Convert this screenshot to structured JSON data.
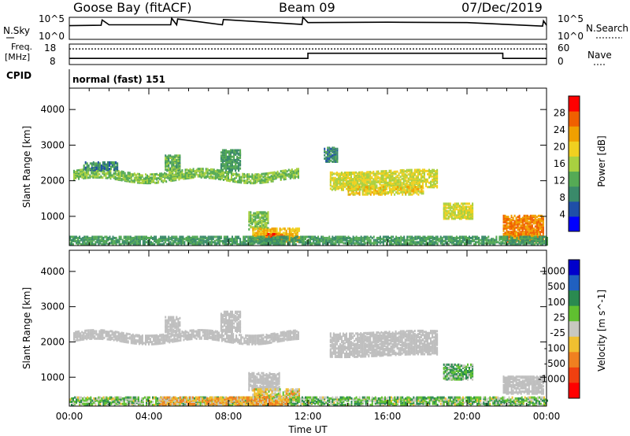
{
  "header": {
    "station": "Goose Bay (fitACF)",
    "beam": "Beam 09",
    "date": "07/Dec/2019"
  },
  "params": {
    "nsky_label": "N.Sky",
    "nsearch_label": "N.Search",
    "freq_label_1": "Freq.",
    "freq_label_2": "[MHz]",
    "nave_label": "Nave",
    "cpid_label": "CPID",
    "cpid_text": "normal (fast) 151",
    "noise_ticks": [
      "10^5",
      "10^0"
    ],
    "noise_ticks_right": [
      "10^5",
      "10^0"
    ],
    "freq_ticks": [
      "18",
      "8"
    ],
    "nave_ticks": [
      "60",
      "0"
    ]
  },
  "colors": {
    "power_scale": [
      "#0000ff",
      "#1f4fa8",
      "#3a8a6a",
      "#55aa55",
      "#a8d040",
      "#f0d020",
      "#f0a000",
      "#f06000",
      "#ff0000"
    ],
    "velocity_scale": [
      "#0000cc",
      "#2060c0",
      "#2a8a50",
      "#60c030",
      "#c8c8c0",
      "#f0c030",
      "#f08020",
      "#f04010",
      "#ff0000"
    ],
    "ground_scatter": "#bebebe"
  },
  "chart_data": [
    {
      "type": "line",
      "title": "",
      "ylabel": "N.Sky",
      "description": "sky noise (log scale), night at ~10^5 level with spikes",
      "x_hours": [
        0,
        1.6,
        1.65,
        2,
        5.1,
        5.15,
        5.4,
        5.45,
        7.7,
        7.75,
        11.7,
        11.75,
        12,
        16,
        20,
        23.8,
        23.85,
        24
      ],
      "values": [
        3.1,
        3.2,
        4.4,
        3.3,
        3.3,
        4.8,
        3.3,
        4.6,
        3.3,
        4.5,
        3.4,
        5.0,
        3.8,
        3.9,
        3.8,
        3.0,
        4.2,
        3.2
      ],
      "ylim": [
        0,
        5
      ]
    },
    {
      "type": "line",
      "ylabel": "Freq. [MHz]",
      "description": "transmit frequency and Nave",
      "x_hours": [
        0,
        12,
        12,
        21.8,
        21.8,
        24
      ],
      "freq_mhz": [
        11.0,
        11.0,
        13.5,
        13.5,
        11.0,
        11.0
      ],
      "nave": [
        46,
        46,
        46,
        46,
        46,
        46
      ],
      "freq_ylim": [
        8,
        18
      ],
      "nave_ylim": [
        0,
        60
      ]
    },
    {
      "type": "heatmap",
      "title": "",
      "xlabel": "",
      "ylabel": "Slant Range [km]",
      "colorbar_label": "Power [dB]",
      "colorbar_ticks": [
        4,
        8,
        12,
        16,
        20,
        24,
        28
      ],
      "zlim": [
        0,
        32
      ],
      "x_hours_range": [
        0,
        24
      ],
      "ylim": [
        180,
        4600
      ],
      "yticks": [
        1000,
        2000,
        3000,
        4000
      ],
      "regions": [
        {
          "t0": 0.2,
          "t1": 11.5,
          "r0": 1980,
          "r1": 2250,
          "level": 14,
          "wave": 1.2,
          "wamp": 80
        },
        {
          "t0": 0.7,
          "t1": 2.4,
          "r0": 2270,
          "r1": 2500,
          "level": 8,
          "wave": 0,
          "wamp": 0
        },
        {
          "t0": 4.8,
          "t1": 5.6,
          "r0": 2250,
          "r1": 2700,
          "level": 12,
          "wave": 0,
          "wamp": 0
        },
        {
          "t0": 7.6,
          "t1": 8.6,
          "r0": 2250,
          "r1": 2850,
          "level": 10,
          "wave": 0,
          "wamp": 0
        },
        {
          "t0": 9.0,
          "t1": 10.0,
          "r0": 600,
          "r1": 1100,
          "level": 14,
          "wave": 0,
          "wamp": 0
        },
        {
          "t0": 9.2,
          "t1": 11.6,
          "r0": 260,
          "r1": 650,
          "level": 22,
          "wave": 0,
          "wamp": 0
        },
        {
          "t0": 9.8,
          "t1": 10.8,
          "r0": 260,
          "r1": 480,
          "level": 28,
          "wave": 0,
          "wamp": 0
        },
        {
          "t0": 13.1,
          "t1": 18.5,
          "r0": 1750,
          "r1": 2250,
          "level": 18,
          "wave": 0.8,
          "wamp": 40
        },
        {
          "t0": 14.0,
          "t1": 17.8,
          "r0": 1580,
          "r1": 1820,
          "level": 20,
          "wave": 0,
          "wamp": 0
        },
        {
          "t0": 12.8,
          "t1": 13.5,
          "r0": 2500,
          "r1": 2900,
          "level": 8,
          "wave": 0,
          "wamp": 0
        },
        {
          "t0": 18.8,
          "t1": 20.3,
          "r0": 900,
          "r1": 1350,
          "level": 18,
          "wave": 0,
          "wamp": 0
        },
        {
          "t0": 21.8,
          "t1": 23.8,
          "r0": 260,
          "r1": 1000,
          "level": 26,
          "wave": 0,
          "wamp": 0
        },
        {
          "t0": 22.3,
          "t1": 23.6,
          "r0": 260,
          "r1": 500,
          "level": 24,
          "wave": 0,
          "wamp": 0
        },
        {
          "t0": 0,
          "t1": 24,
          "r0": 180,
          "r1": 420,
          "level": 10,
          "wave": 0,
          "wamp": 0
        }
      ]
    },
    {
      "type": "heatmap",
      "title": "",
      "xlabel": "Time UT",
      "ylabel": "Slant Range [km]",
      "colorbar_label": "Velocity [m s^-1]",
      "colorbar_ticks": [
        1000,
        500,
        100,
        25,
        -25,
        -100,
        -500,
        -1000
      ],
      "x_hours_range": [
        0,
        24
      ],
      "xticks": [
        "00:00",
        "04:00",
        "08:00",
        "12:00",
        "16:00",
        "20:00",
        "00:00"
      ],
      "ylim": [
        180,
        4600
      ],
      "yticks": [
        1000,
        2000,
        3000,
        4000
      ],
      "regions": [
        {
          "t0": 0.2,
          "t1": 11.5,
          "r0": 1980,
          "r1": 2250,
          "vel": 0,
          "gs": true,
          "wave": 1.2,
          "wamp": 80
        },
        {
          "t0": 4.8,
          "t1": 5.6,
          "r0": 2250,
          "r1": 2700,
          "vel": 0,
          "gs": true,
          "wave": 0,
          "wamp": 0
        },
        {
          "t0": 7.6,
          "t1": 8.6,
          "r0": 2250,
          "r1": 2850,
          "vel": 0,
          "gs": true,
          "wave": 0,
          "wamp": 0
        },
        {
          "t0": 9.0,
          "t1": 10.6,
          "r0": 600,
          "r1": 1100,
          "vel": 0,
          "gs": true,
          "wave": 0,
          "wamp": 0
        },
        {
          "t0": 9.2,
          "t1": 11.6,
          "r0": 260,
          "r1": 650,
          "vel": -40,
          "gs": false,
          "wave": 0,
          "wamp": 0
        },
        {
          "t0": 13.1,
          "t1": 18.5,
          "r0": 1580,
          "r1": 2250,
          "vel": 0,
          "gs": true,
          "wave": 0.8,
          "wamp": 40
        },
        {
          "t0": 18.8,
          "t1": 20.3,
          "r0": 900,
          "r1": 1350,
          "vel": 80,
          "gs": false,
          "wave": 0,
          "wamp": 0
        },
        {
          "t0": 21.8,
          "t1": 23.8,
          "r0": 500,
          "r1": 1000,
          "vel": 0,
          "gs": true,
          "wave": 0,
          "wamp": 0
        },
        {
          "t0": 0,
          "t1": 24,
          "r0": 180,
          "r1": 420,
          "vel": 60,
          "gs": false,
          "wave": 0,
          "wamp": 0
        },
        {
          "t0": 4.5,
          "t1": 11,
          "r0": 180,
          "r1": 420,
          "vel": -80,
          "gs": false,
          "wave": 0,
          "wamp": 0
        }
      ]
    }
  ]
}
